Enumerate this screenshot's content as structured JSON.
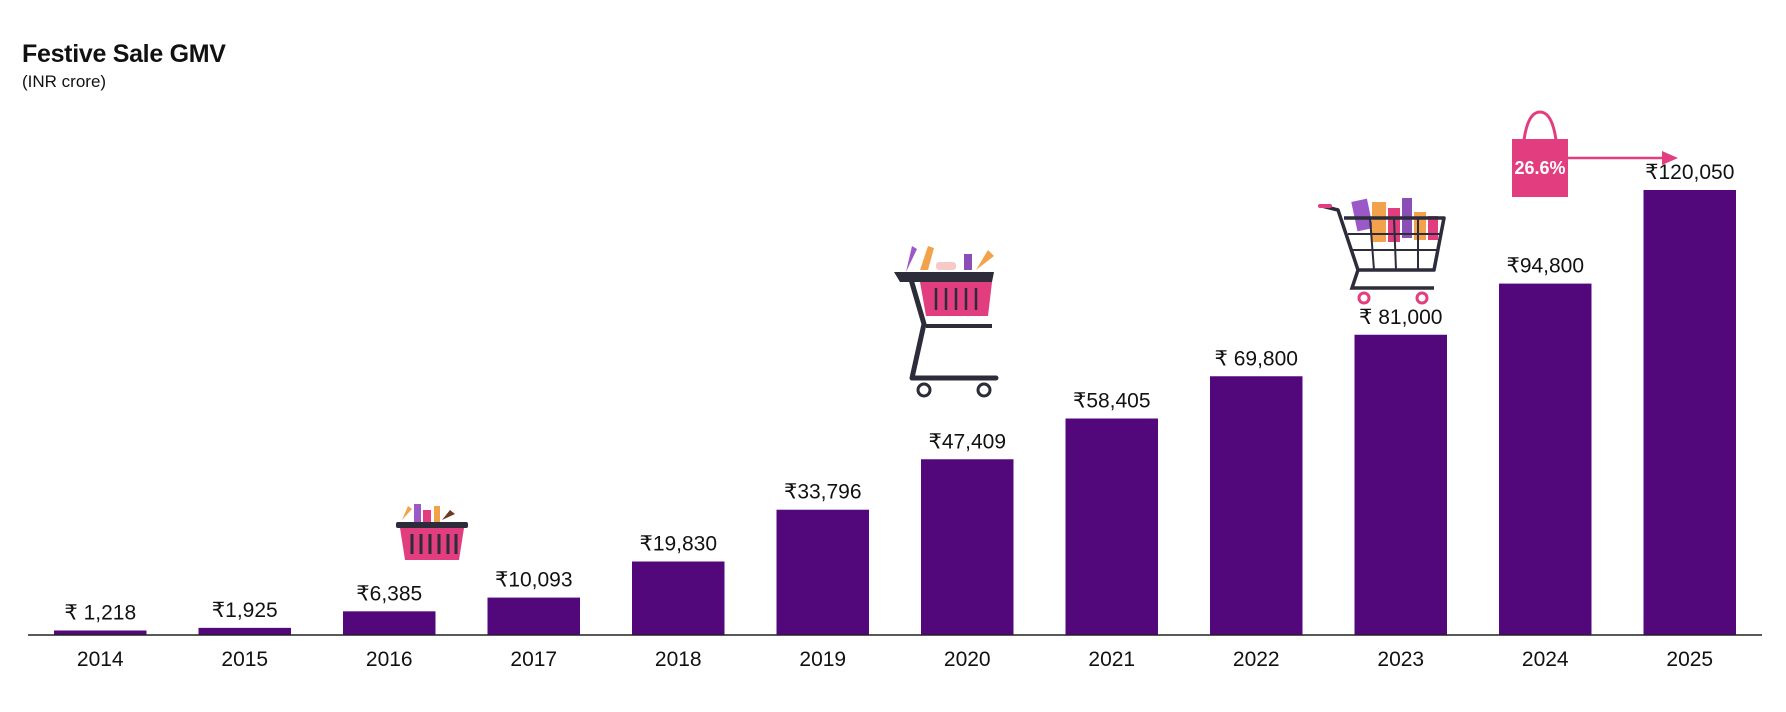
{
  "chart_data": {
    "type": "bar",
    "title": "Festive Sale GMV",
    "subtitle": "(INR crore)",
    "categories": [
      "2014",
      "2015",
      "2016",
      "2017",
      "2018",
      "2019",
      "2020",
      "2021",
      "2022",
      "2023",
      "2024",
      "2025"
    ],
    "values": [
      1218,
      1925,
      6385,
      10093,
      19830,
      33796,
      47409,
      58405,
      69800,
      81000,
      94800,
      120050
    ],
    "value_labels": [
      "₹ 1,218",
      "₹1,925",
      "₹6,385",
      "₹10,093",
      "₹19,830",
      "₹33,796",
      "₹47,409",
      "₹58,405",
      "₹ 69,800",
      "₹ 81,000",
      "₹94,800",
      "₹120,050"
    ],
    "ylim": [
      0,
      137000
    ],
    "xlabel": "",
    "ylabel": "",
    "grid": false,
    "growth_annotation": {
      "text": "26.6%",
      "from": "2024",
      "to": "2025"
    }
  },
  "colors": {
    "bar": "#52077a",
    "accent": "#e23d7f",
    "text": "#111111"
  },
  "icons": [
    "basket-icon",
    "shopping-cart-icon",
    "full-cart-icon",
    "shopping-bag-icon"
  ]
}
